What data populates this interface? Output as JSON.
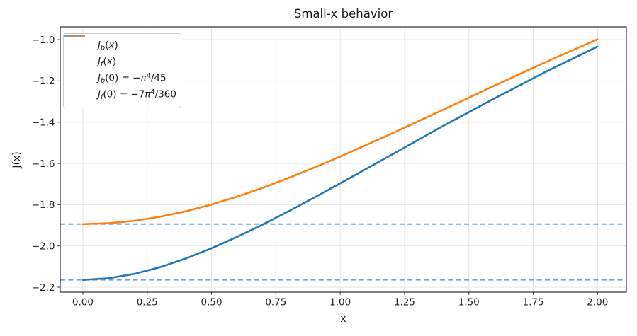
{
  "chart_data": {
    "type": "line",
    "title": "Small-x behavior",
    "xlabel": "x",
    "ylabel": "J(x)",
    "xlim": [
      -0.088,
      2.112
    ],
    "ylim": [
      -2.224,
      -0.938
    ],
    "xticks": [
      0,
      0.25,
      0.5,
      0.75,
      1.0,
      1.25,
      1.5,
      1.75,
      2.0
    ],
    "xtick_labels": [
      "0.00",
      "0.25",
      "0.50",
      "0.75",
      "1.00",
      "1.25",
      "1.50",
      "1.75",
      "2.00"
    ],
    "yticks": [
      -1.0,
      -1.2,
      -1.4,
      -1.6,
      -1.8,
      -2.0,
      -2.2
    ],
    "ytick_labels": [
      "−1.0",
      "−1.2",
      "−1.4",
      "−1.6",
      "−1.8",
      "−2.0",
      "−2.2"
    ],
    "grid": true,
    "legend_position": "upper-left",
    "axes_style": {
      "spine_color": "#1a1a1a",
      "grid_color": "#e5e5e5",
      "tick_color": "#262626",
      "background": "#ffffff"
    },
    "series": [
      {
        "name": "J_b(x)",
        "type": "line",
        "style": "solid",
        "color": "#1f77b4",
        "linewidth": 2.6,
        "x": [
          0,
          0.1,
          0.2,
          0.3,
          0.4,
          0.5,
          0.6,
          0.7,
          0.8,
          0.9,
          1.0,
          1.2,
          1.4,
          1.6,
          1.8,
          2.0
        ],
        "y": [
          -2.1646,
          -2.1569,
          -2.1355,
          -2.1028,
          -2.0608,
          -2.0112,
          -1.9556,
          -1.8953,
          -1.8314,
          -1.7649,
          -1.6964,
          -1.5576,
          -1.4181,
          -1.2842,
          -1.1548,
          -1.0334
        ]
      },
      {
        "name": "J_f(x)",
        "type": "line",
        "style": "solid",
        "color": "#ff7f0e",
        "linewidth": 2.6,
        "x": [
          0,
          0.1,
          0.2,
          0.3,
          0.4,
          0.5,
          0.6,
          0.7,
          0.8,
          0.9,
          1.0,
          1.2,
          1.4,
          1.6,
          1.8,
          2.0
        ],
        "y": [
          -1.8941,
          -1.89,
          -1.8779,
          -1.8583,
          -1.8318,
          -1.7991,
          -1.7608,
          -1.7177,
          -1.6703,
          -1.6199,
          -1.5668,
          -1.4553,
          -1.3398,
          -1.2222,
          -1.1079,
          -0.9985
        ]
      },
      {
        "name": "J_b(0) = −π^4/45",
        "type": "hline",
        "style": "dashed",
        "color": "#6da6ce",
        "linewidth": 2,
        "y": -2.1646
      },
      {
        "name": "J_f(0) = −7π^4/360",
        "type": "hline",
        "style": "dashed",
        "color": "#6da6ce",
        "linewidth": 2,
        "y": -1.8941
      }
    ]
  }
}
